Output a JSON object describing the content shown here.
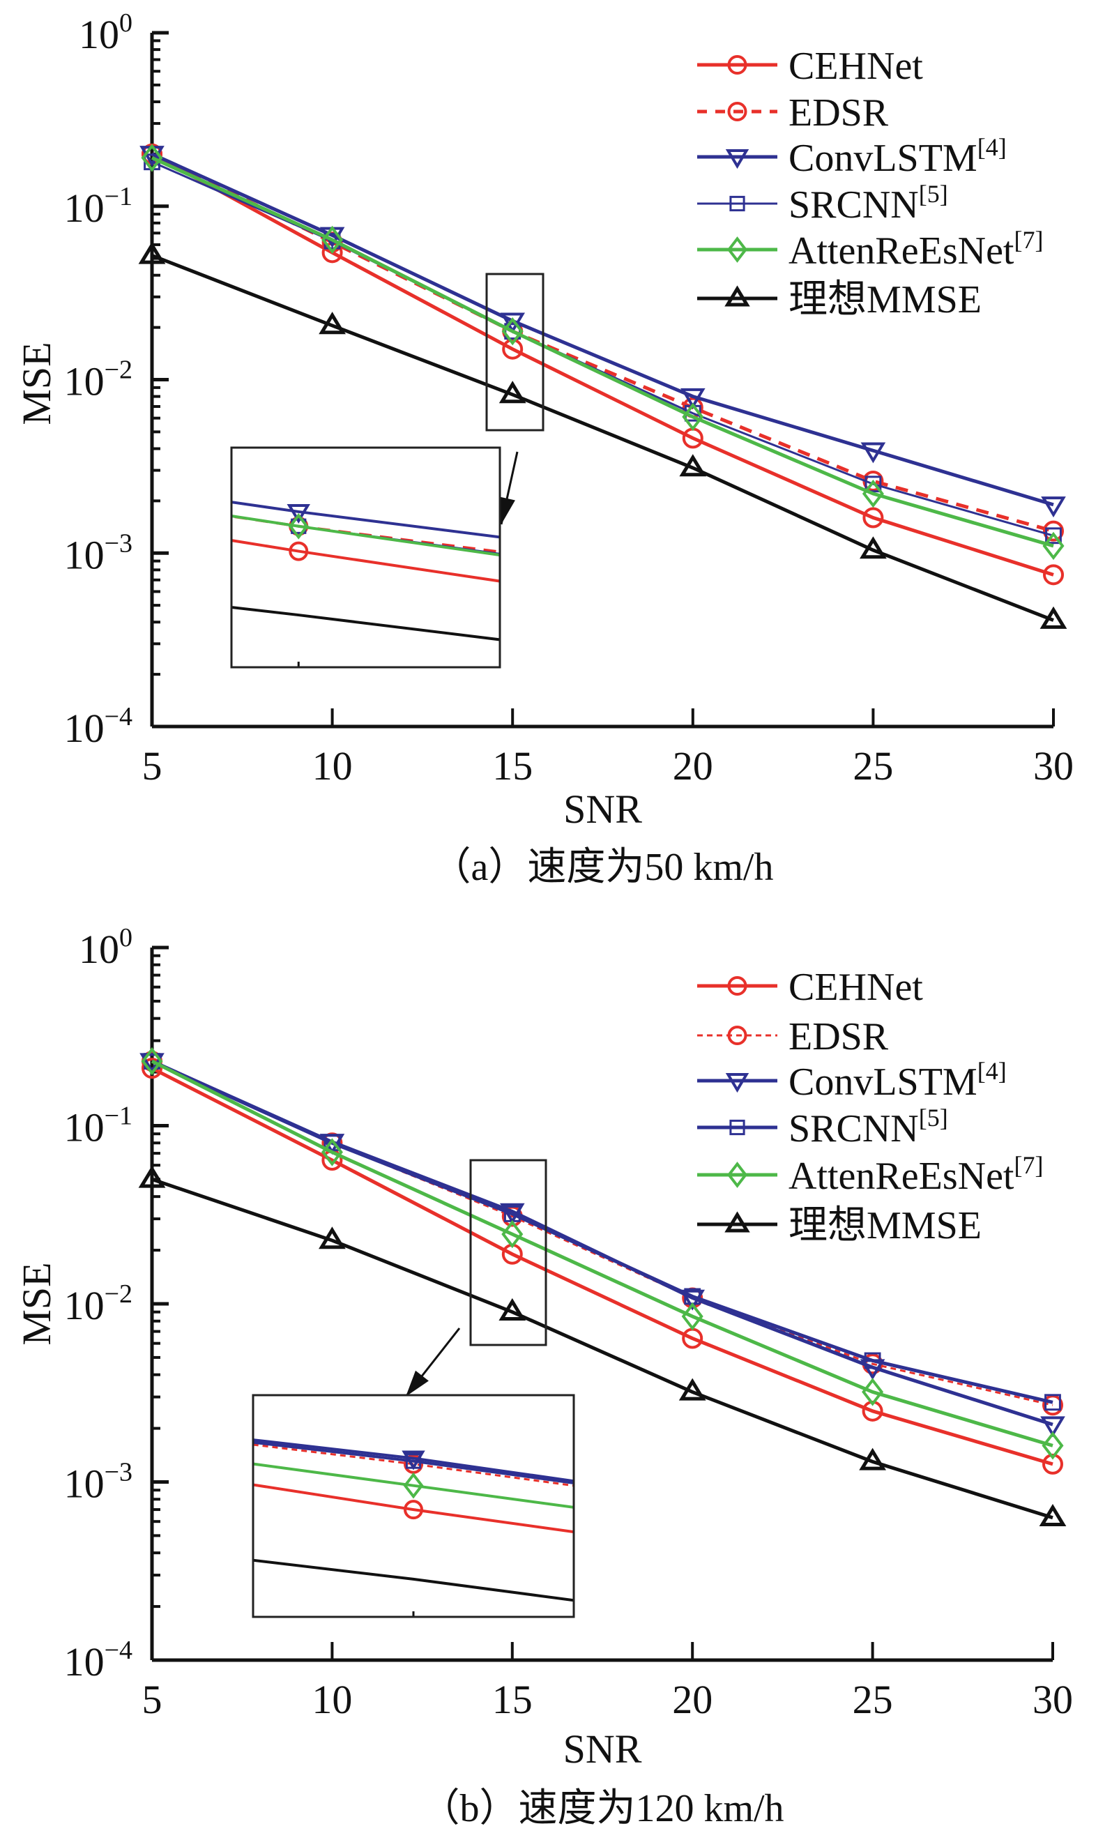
{
  "figure": {
    "panels": [
      "a",
      "b"
    ]
  },
  "chart_data": [
    {
      "type": "line",
      "id": "a",
      "title": "",
      "caption": "（a）速度为50 km/h",
      "xlabel": "SNR",
      "ylabel": "MSE",
      "yscale": "log",
      "xlim": [
        5,
        30
      ],
      "ylim": [
        0.0001,
        1
      ],
      "x": [
        5,
        10,
        15,
        20,
        25,
        30
      ],
      "xticks": [
        "5",
        "10",
        "15",
        "20",
        "25",
        "30"
      ],
      "yticks": [
        {
          "base": "10",
          "exp": "0"
        },
        {
          "base": "10",
          "exp": "−1"
        },
        {
          "base": "10",
          "exp": "−2"
        },
        {
          "base": "10",
          "exp": "−3"
        },
        {
          "base": "10",
          "exp": "−4"
        }
      ],
      "legend_position": "top-right",
      "zoom_box": {
        "x_range": [
          14.6,
          16.2
        ],
        "y_range": [
          0.005,
          0.04
        ]
      },
      "series": [
        {
          "name": "CEHNet",
          "ref": "",
          "color": "#e8302a",
          "dash": "solid",
          "marker": "circle",
          "values": [
            0.2,
            0.054,
            0.015,
            0.0046,
            0.0016,
            0.00075
          ]
        },
        {
          "name": "EDSR",
          "ref": "",
          "color": "#e8302a",
          "dash": "dashed",
          "marker": "circle",
          "values": [
            0.2,
            0.062,
            0.019,
            0.0069,
            0.0026,
            0.00134
          ]
        },
        {
          "name": "ConvLSTM",
          "ref": "[4]",
          "color": "#2e3192",
          "dash": "solid",
          "marker": "triangle-down",
          "values": [
            0.2,
            0.068,
            0.0218,
            0.008,
            0.0039,
            0.0019
          ]
        },
        {
          "name": "SRCNN",
          "ref": "[5]",
          "color": "#2e3192",
          "dash": "thin",
          "marker": "square",
          "values": [
            0.18,
            0.063,
            0.019,
            0.0064,
            0.0025,
            0.00126
          ]
        },
        {
          "name": "AttenReEsNet",
          "ref": "[7]",
          "color": "#4db848",
          "dash": "solid",
          "marker": "diamond",
          "values": [
            0.19,
            0.064,
            0.019,
            0.0061,
            0.0022,
            0.0011
          ]
        },
        {
          "name": "理想MMSE",
          "ref": "",
          "color": "#111111",
          "dash": "solid",
          "marker": "triangle-up",
          "values": [
            0.052,
            0.0205,
            0.0082,
            0.0031,
            0.00104,
            0.00041
          ]
        }
      ]
    },
    {
      "type": "line",
      "id": "b",
      "title": "",
      "caption": "（b）速度为120 km/h",
      "xlabel": "SNR",
      "ylabel": "MSE",
      "yscale": "log",
      "xlim": [
        5,
        30
      ],
      "ylim": [
        0.0001,
        1
      ],
      "x": [
        5,
        10,
        15,
        20,
        25,
        30
      ],
      "xticks": [
        "5",
        "10",
        "15",
        "20",
        "25",
        "30"
      ],
      "yticks": [
        {
          "base": "10",
          "exp": "0"
        },
        {
          "base": "10",
          "exp": "−1"
        },
        {
          "base": "10",
          "exp": "−2"
        },
        {
          "base": "10",
          "exp": "−3"
        },
        {
          "base": "10",
          "exp": "−4"
        }
      ],
      "legend_position": "top-right",
      "zoom_box": {
        "x_range": [
          13.9,
          16.1
        ],
        "y_range": [
          0.006,
          0.065
        ]
      },
      "series": [
        {
          "name": "CEHNet",
          "ref": "",
          "color": "#e8302a",
          "dash": "solid",
          "marker": "circle",
          "values": [
            0.21,
            0.064,
            0.019,
            0.0064,
            0.0025,
            0.00126
          ]
        },
        {
          "name": "EDSR",
          "ref": "",
          "color": "#e8302a",
          "dash": "dotted",
          "marker": "circle",
          "values": [
            0.23,
            0.08,
            0.031,
            0.0108,
            0.0046,
            0.0027
          ]
        },
        {
          "name": "ConvLSTM",
          "ref": "[4]",
          "color": "#2e3192",
          "dash": "solid",
          "marker": "triangle-down",
          "values": [
            0.23,
            0.081,
            0.033,
            0.0108,
            0.0044,
            0.0021
          ]
        },
        {
          "name": "SRCNN",
          "ref": "[5]",
          "color": "#2e3192",
          "dash": "solid",
          "marker": "square",
          "values": [
            0.23,
            0.08,
            0.032,
            0.011,
            0.0048,
            0.0028
          ]
        },
        {
          "name": "AttenReEsNet",
          "ref": "[7]",
          "color": "#4db848",
          "dash": "solid",
          "marker": "diamond",
          "values": [
            0.23,
            0.071,
            0.0246,
            0.0085,
            0.0032,
            0.0016
          ]
        },
        {
          "name": "理想MMSE",
          "ref": "",
          "color": "#111111",
          "dash": "solid",
          "marker": "triangle-up",
          "values": [
            0.05,
            0.0227,
            0.009,
            0.0032,
            0.0013,
            0.00063
          ]
        }
      ]
    }
  ]
}
